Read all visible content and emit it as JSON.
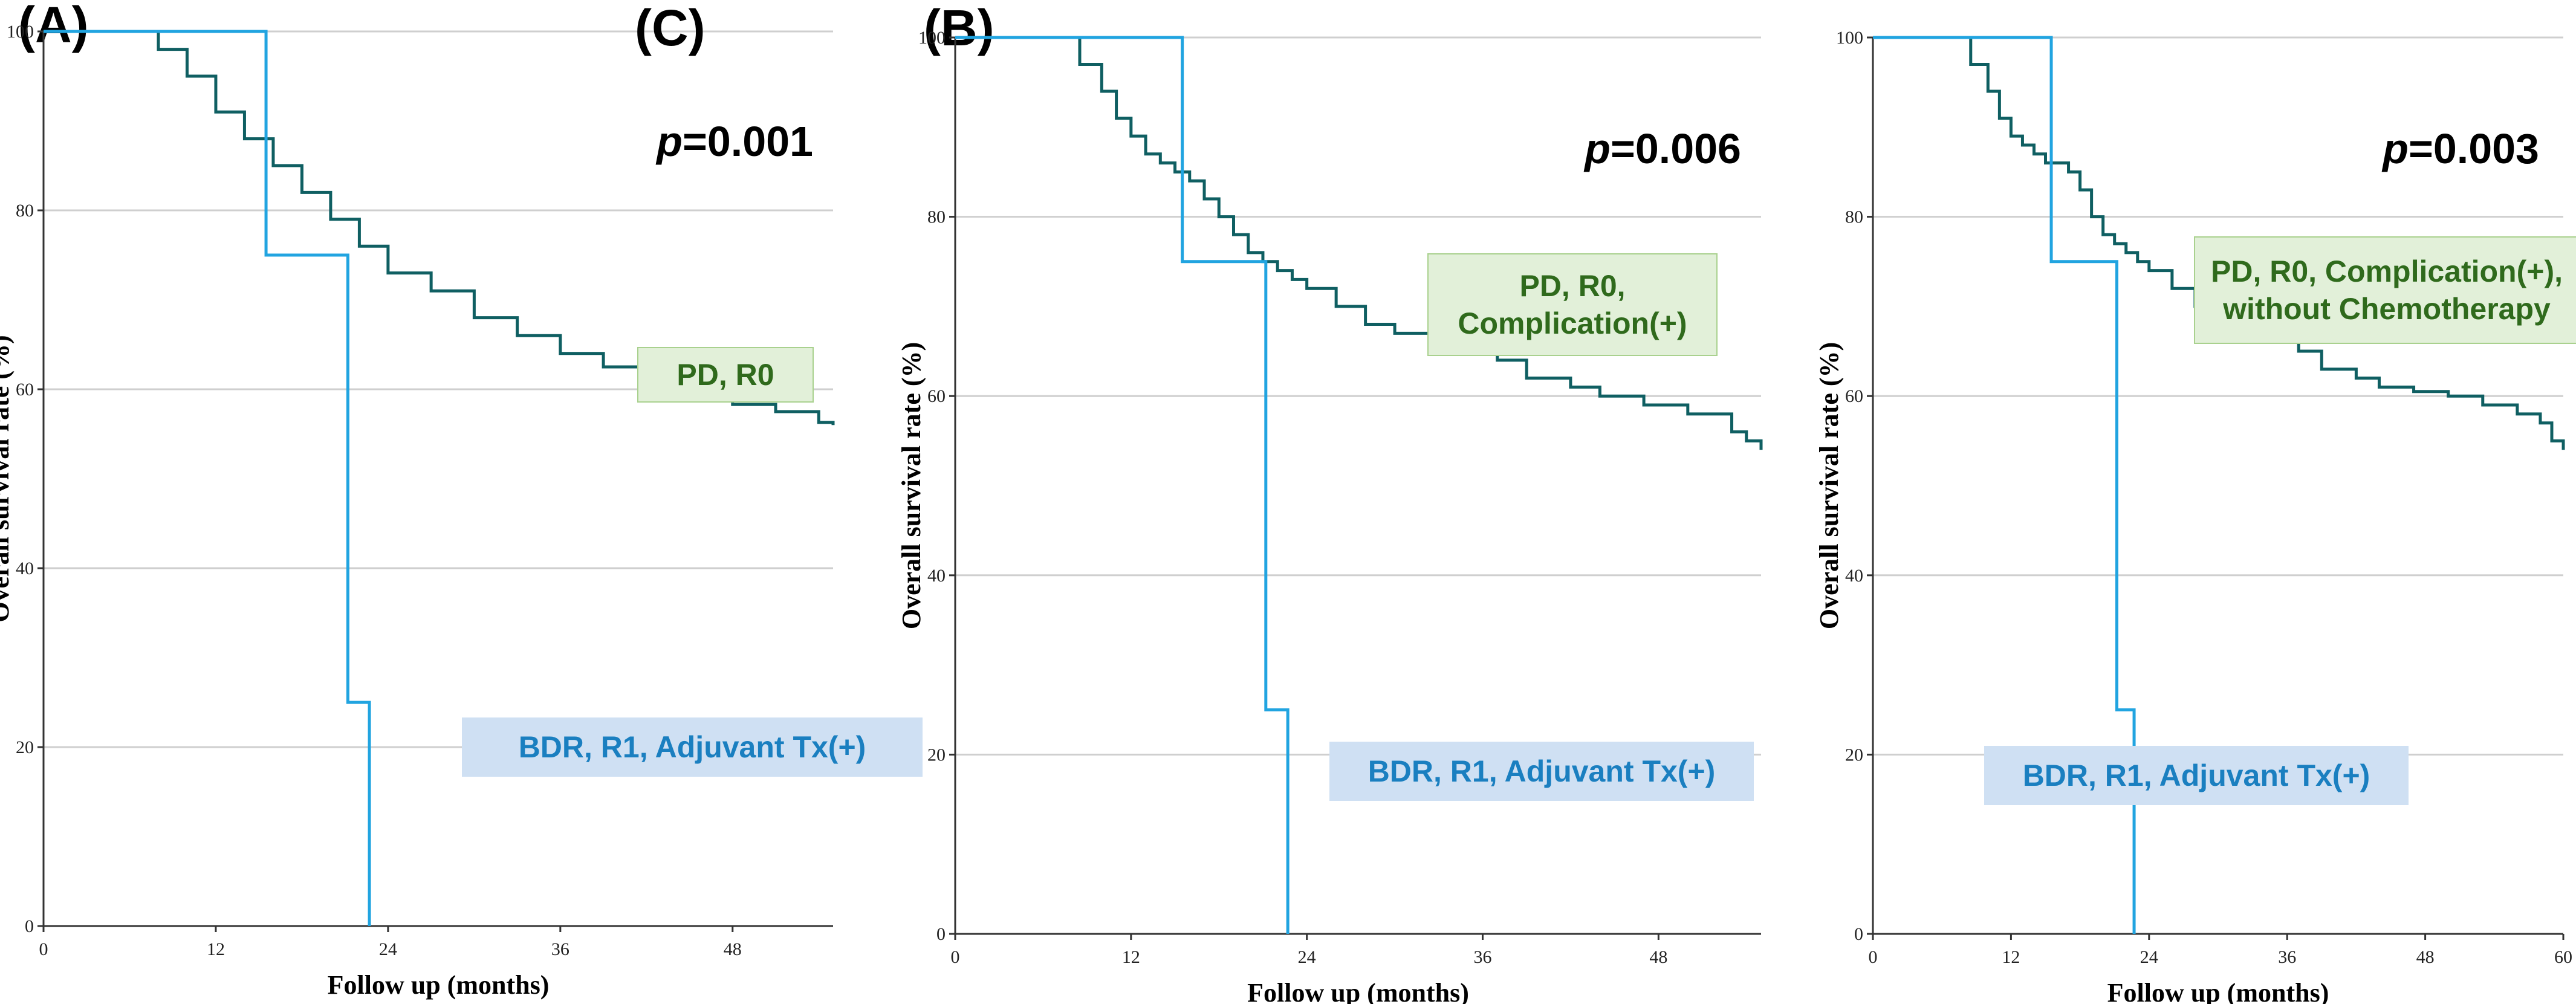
{
  "colors": {
    "group1_curve": "#0f5f62",
    "group2_curve": "#21a4e0",
    "group1_label_text": "#2f6a1c",
    "group1_label_box": "#e2f0d9",
    "group2_label_text": "#1a7fc0",
    "group2_label_box": "#cfe0f3",
    "grid": "#cfcfcf"
  },
  "chart_data": [
    {
      "type": "line",
      "subtype": "kaplan-meier",
      "panel": "(A)",
      "p_prefix": "p",
      "p_value": "=0.001",
      "xlabel": "Follow up (months)",
      "ylabel": "Overall survival rate (%)",
      "xlim": [
        0,
        55
      ],
      "ylim": [
        0,
        100
      ],
      "xticks": [
        0,
        12,
        24,
        36,
        48
      ],
      "yticks": [
        0,
        20,
        40,
        60,
        80,
        100
      ],
      "grid": true,
      "series": [
        {
          "name": "PD, R0",
          "label_lines": [
            "PD, R0"
          ],
          "color": "#0f5f62",
          "x": [
            0,
            6.5,
            8,
            10,
            12,
            14,
            16,
            18,
            20,
            22,
            24,
            27,
            30,
            33,
            36,
            39,
            42,
            45,
            48,
            51,
            54,
            55
          ],
          "y": [
            100,
            100,
            98,
            95,
            91,
            88,
            85,
            82,
            79,
            76,
            73,
            71,
            68,
            66,
            64,
            62.5,
            61,
            59.5,
            58.3,
            57.5,
            56.3,
            56
          ]
        },
        {
          "name": "BDR, R1, Adjuvant Tx(+)",
          "label_lines": [
            "BDR, R1, Adjuvant Tx(+)"
          ],
          "color": "#21a4e0",
          "x": [
            0,
            15.5,
            15.5,
            21.2,
            21.2,
            22.7,
            22.7
          ],
          "y": [
            100,
            100,
            75,
            75,
            25,
            25,
            0
          ]
        }
      ]
    },
    {
      "type": "line",
      "subtype": "kaplan-meier",
      "panel": "(B)",
      "p_prefix": "p",
      "p_value": "=0.006",
      "xlabel": "Follow up (months)",
      "ylabel": "Overall survival rate (%)",
      "xlim": [
        0,
        55
      ],
      "ylim": [
        0,
        100
      ],
      "xticks": [
        0,
        12,
        24,
        36,
        48
      ],
      "yticks": [
        0,
        20,
        40,
        60,
        80,
        100
      ],
      "grid": true,
      "series": [
        {
          "name": "PD, R0, Complication(+)",
          "label_lines": [
            "PD, R0,",
            "Complication(+)"
          ],
          "color": "#0f5f62",
          "x": [
            0,
            7.5,
            8.5,
            10,
            11,
            12,
            13,
            14,
            15,
            16,
            17,
            18,
            19,
            20,
            21,
            22,
            23,
            24,
            26,
            28,
            30,
            33,
            35,
            37,
            39,
            42,
            44,
            47,
            50,
            53,
            54,
            55
          ],
          "y": [
            100,
            100,
            97,
            94,
            91,
            89,
            87,
            86,
            85,
            84,
            82,
            80,
            78,
            76,
            75,
            74,
            73,
            72,
            70,
            68,
            67,
            66,
            65,
            64,
            62,
            61,
            60,
            59,
            58,
            56,
            55,
            54
          ]
        },
        {
          "name": "BDR, R1, Adjuvant Tx(+)",
          "label_lines": [
            "BDR, R1, Adjuvant Tx(+)"
          ],
          "color": "#21a4e0",
          "x": [
            0,
            15.5,
            15.5,
            21.2,
            21.2,
            22.7,
            22.7
          ],
          "y": [
            100,
            100,
            75,
            75,
            25,
            25,
            0
          ]
        }
      ]
    },
    {
      "type": "line",
      "subtype": "kaplan-meier",
      "panel": "(C)",
      "p_prefix": "p",
      "p_value": "=0.003",
      "xlabel": "Follow up (months)",
      "ylabel": "Overall survival rate (%)",
      "xlim": [
        0,
        60
      ],
      "ylim": [
        0,
        100
      ],
      "xticks": [
        0,
        12,
        24,
        36,
        48,
        60
      ],
      "yticks": [
        0,
        20,
        40,
        60,
        80,
        100
      ],
      "grid": true,
      "series": [
        {
          "name": "PD, R0, Complication(+), without Chemotherapy",
          "label_lines": [
            "PD, R0, Complication(+),",
            "without Chemotherapy"
          ],
          "color": "#0f5f62",
          "x": [
            0,
            7.5,
            8.5,
            10,
            11,
            12,
            13,
            14,
            15,
            16,
            17,
            18,
            19,
            20,
            21,
            22,
            23,
            24,
            26,
            28,
            30,
            33,
            35,
            37,
            39,
            42,
            44,
            47,
            50,
            53,
            56,
            58,
            59,
            60
          ],
          "y": [
            100,
            100,
            97,
            94,
            91,
            89,
            88,
            87,
            86,
            86,
            85,
            83,
            80,
            78,
            77,
            76,
            75,
            74,
            72,
            70,
            68,
            67,
            66,
            65,
            63,
            62,
            61,
            60.5,
            60,
            59,
            58,
            57,
            55,
            54
          ]
        },
        {
          "name": "BDR, R1, Adjuvant Tx(+)",
          "label_lines": [
            "BDR, R1, Adjuvant Tx(+)"
          ],
          "color": "#21a4e0",
          "x": [
            0,
            15.5,
            15.5,
            21.2,
            21.2,
            22.7,
            22.7
          ],
          "y": [
            100,
            100,
            75,
            75,
            25,
            25,
            0
          ]
        }
      ]
    }
  ]
}
